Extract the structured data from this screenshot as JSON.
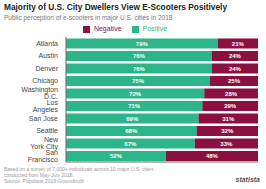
{
  "chart_data": {
    "type": "bar",
    "orientation": "horizontal",
    "stacked": true,
    "data_labels": true,
    "tick_labels": "y",
    "title": "Majority of U.S. City Dwellers View E-Scooters Positively",
    "subtitle": "Public perception of e-scooters in major U.S. cities in 2018",
    "annotations": [
      "Based on a survey of 7,000+ individuals across 10 major U.S. cities",
      "conducted from May-July 2018.",
      "Source: Populous 2018 Groundtruth",
      "statista"
    ],
    "categories": [
      "Atlanta",
      "Austin",
      "Denver",
      "Chicago",
      "Washington D.C.",
      "Los Angeles",
      "San Jose",
      "Seattle",
      "New York City",
      "San Francisco"
    ],
    "xlim": [
      0,
      100
    ],
    "series": [
      {
        "name": "Positive",
        "color": "#2db58a",
        "values": [
          79,
          76,
          76,
          75,
          72,
          71,
          69,
          68,
          67,
          52
        ],
        "value_labels": [
          "79%",
          "76%",
          "76%",
          "75%",
          "72%",
          "71%",
          "69%",
          "68%",
          "67%",
          "52%"
        ]
      },
      {
        "name": "Negative",
        "color": "#8B1040",
        "values": [
          21,
          24,
          24,
          25,
          28,
          29,
          31,
          32,
          33,
          48
        ],
        "value_labels": [
          "21%",
          "24%",
          "24%",
          "25%",
          "28%",
          "29%",
          "31%",
          "32%",
          "33%",
          "48%"
        ]
      }
    ]
  }
}
